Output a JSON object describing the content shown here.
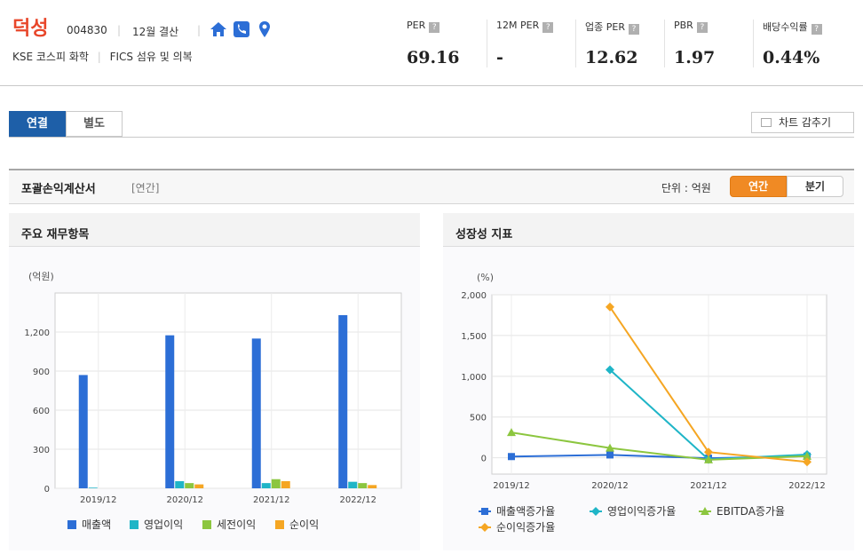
{
  "header": {
    "company_name": "덕성",
    "code": "004830",
    "settlement": "12월 결산",
    "market": "KSE 코스피 화학",
    "sector": "FICS 섬유 및 의복",
    "metrics": [
      {
        "label": "PER",
        "value": "69.16"
      },
      {
        "label": "12M PER",
        "value": "-"
      },
      {
        "label": "업종 PER",
        "value": "12.62"
      },
      {
        "label": "PBR",
        "value": "1.97"
      },
      {
        "label": "배당수익률",
        "value": "0.44%"
      }
    ],
    "help_glyph": "?"
  },
  "tabs": {
    "consolidated": "연결",
    "separate": "별도",
    "hide_chart": "차트 감추기"
  },
  "section": {
    "title": "포괄손익계산서",
    "period_tag": "[연간]",
    "unit_label": "단위 : 억원",
    "annual_btn": "연간",
    "quarter_btn": "분기"
  },
  "panels": {
    "left_title": "주요 재무항목",
    "right_title": "성장성 지표"
  },
  "colors": {
    "brand": "#e8462a",
    "tab_active": "#1e5fa8",
    "toggle_active": "#f08a24"
  },
  "chart_data": [
    {
      "type": "bar",
      "title": "주요 재무항목",
      "ylabel": "(억원)",
      "categories": [
        "2019/12",
        "2020/12",
        "2021/12",
        "2022/12"
      ],
      "ylim": [
        0,
        1500
      ],
      "yticks": [
        0,
        300,
        600,
        900,
        1200
      ],
      "ytick_labels": [
        "0",
        "300",
        "600",
        "900",
        "1,200"
      ],
      "grid": true,
      "legend_position": "bottom",
      "series": [
        {
          "name": "매출액",
          "color": "#2c6ed6",
          "values": [
            870,
            1175,
            1150,
            1330
          ]
        },
        {
          "name": "영업이익",
          "color": "#1fb5c7",
          "values": [
            5,
            55,
            40,
            50
          ]
        },
        {
          "name": "세전이익",
          "color": "#8cc63f",
          "values": [
            null,
            40,
            70,
            40
          ]
        },
        {
          "name": "순이익",
          "color": "#f5a623",
          "values": [
            null,
            30,
            55,
            25
          ]
        }
      ]
    },
    {
      "type": "line",
      "title": "성장성 지표",
      "ylabel": "(%)",
      "categories": [
        "2019/12",
        "2020/12",
        "2021/12",
        "2022/12"
      ],
      "ylim": [
        -200,
        2000
      ],
      "yticks": [
        0,
        500,
        1000,
        1500,
        2000
      ],
      "ytick_labels": [
        "0",
        "500",
        "1,000",
        "1,500",
        "2,000"
      ],
      "grid": true,
      "legend_position": "bottom",
      "series": [
        {
          "name": "매출액증가율",
          "color": "#2c6ed6",
          "marker": "square",
          "values": [
            15,
            35,
            -5,
            20
          ]
        },
        {
          "name": "영업이익증가율",
          "color": "#1fb5c7",
          "marker": "diamond",
          "values": [
            null,
            1080,
            -20,
            40
          ]
        },
        {
          "name": "EBITDA증가율",
          "color": "#8cc63f",
          "marker": "triangle",
          "values": [
            310,
            120,
            -25,
            20
          ]
        },
        {
          "name": "순이익증가율",
          "color": "#f5a623",
          "marker": "diamond",
          "values": [
            null,
            1850,
            70,
            -50
          ]
        }
      ]
    }
  ]
}
